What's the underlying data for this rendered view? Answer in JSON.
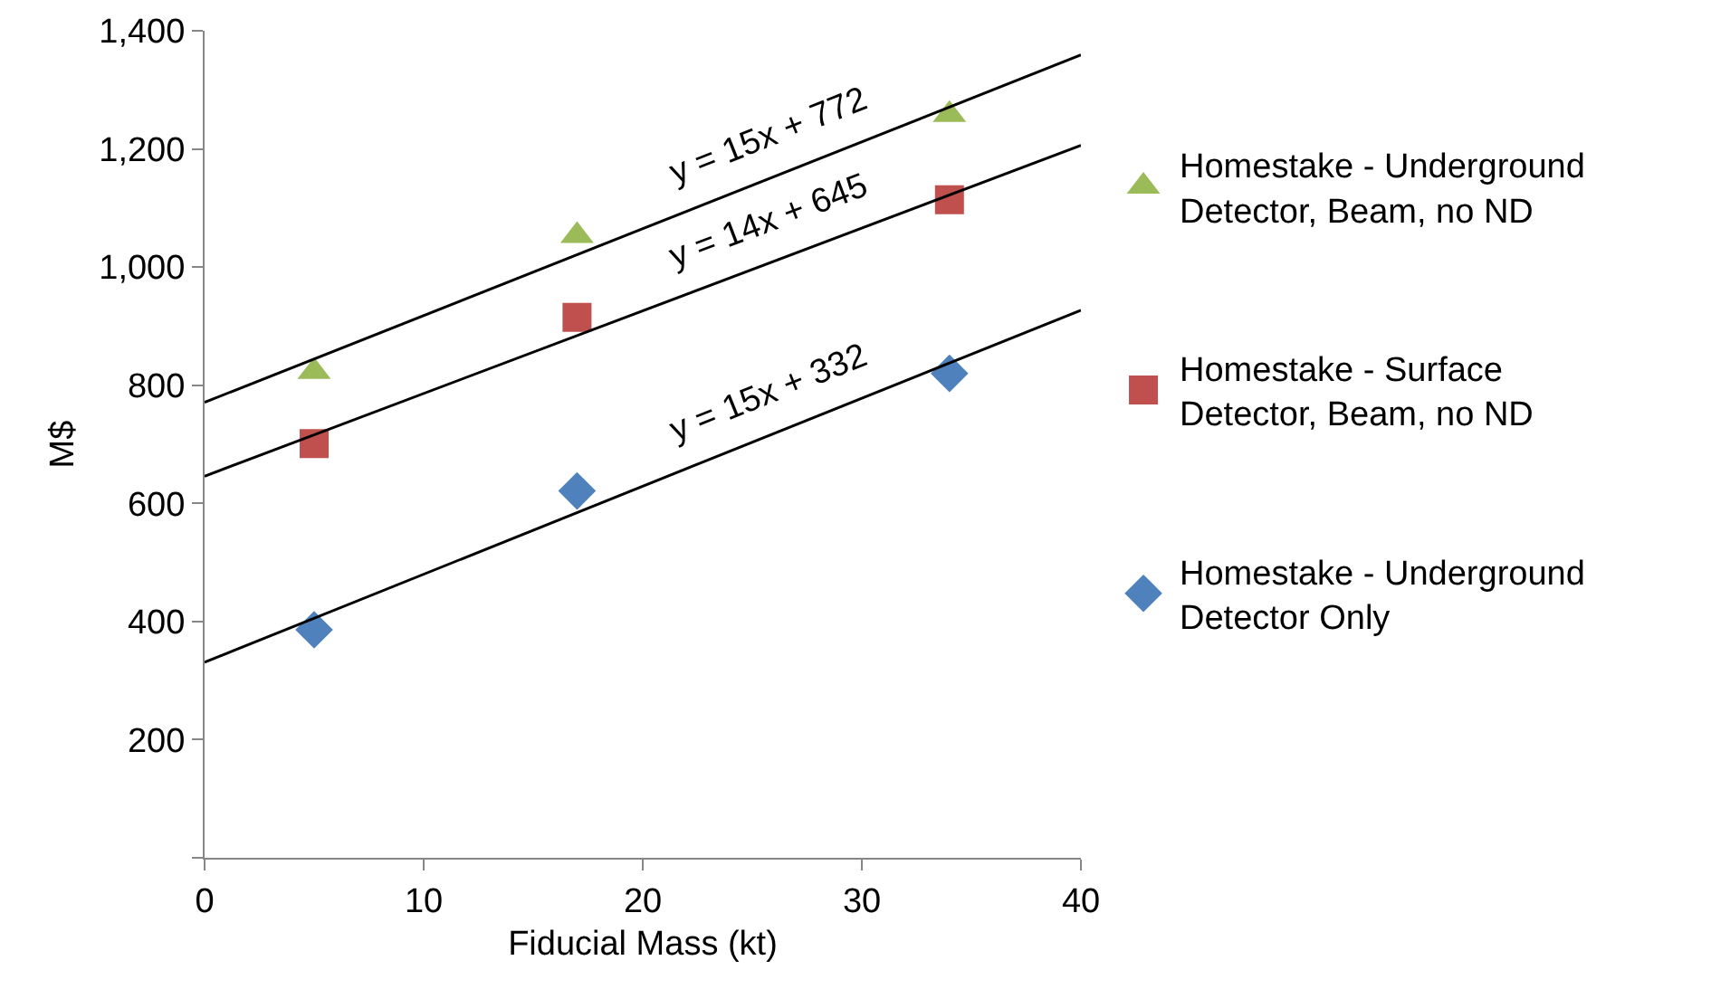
{
  "chart_data": {
    "type": "scatter",
    "xlabel": "Fiducial Mass (kt)",
    "ylabel": "M$",
    "xlim": [
      0,
      40
    ],
    "xticks": [
      0,
      10,
      20,
      30,
      40
    ],
    "ylim": [
      0,
      1400
    ],
    "yticks": [
      {
        "value": 0,
        "label": null
      },
      200,
      400,
      600,
      800,
      {
        "value": 1000,
        "label": "1,000"
      },
      {
        "value": 1200,
        "label": "1,200"
      },
      {
        "value": 1400,
        "label": "1,400"
      }
    ],
    "grid": false,
    "legend": "right",
    "series": [
      {
        "name": "Homestake - Underground Detector, Beam, no ND",
        "color": "#9bbb59",
        "marker": "triangle",
        "x": [
          5,
          17,
          34
        ],
        "values": [
          823,
          1053,
          1258
        ]
      },
      {
        "name": "Homestake - Surface Detector, Beam, no ND",
        "color": "#c0504d",
        "marker": "square",
        "x": [
          5,
          17,
          34
        ],
        "values": [
          701,
          915,
          1114
        ]
      },
      {
        "name": "Homestake - Underground Detector Only",
        "color": "#4f81bd",
        "marker": "diamond",
        "x": [
          5,
          17,
          34
        ],
        "values": [
          386,
          621,
          820
        ]
      },
      {
        "type": "line",
        "color": "#000000",
        "marker": "none",
        "line_style": "solid",
        "x": [
          0,
          40
        ],
        "values": [
          771,
          1359
        ]
      },
      {
        "type": "line",
        "color": "#000000",
        "marker": "none",
        "line_style": "solid",
        "x": [
          0,
          40
        ],
        "values": [
          646,
          1206
        ]
      },
      {
        "type": "line",
        "color": "#000000",
        "marker": "none",
        "line_style": "solid",
        "x": [
          0,
          40
        ],
        "values": [
          331,
          927
        ]
      }
    ],
    "annotations": [
      "y = 15x + 772",
      "y = 14x + 645",
      "y = 15x + 332"
    ]
  }
}
